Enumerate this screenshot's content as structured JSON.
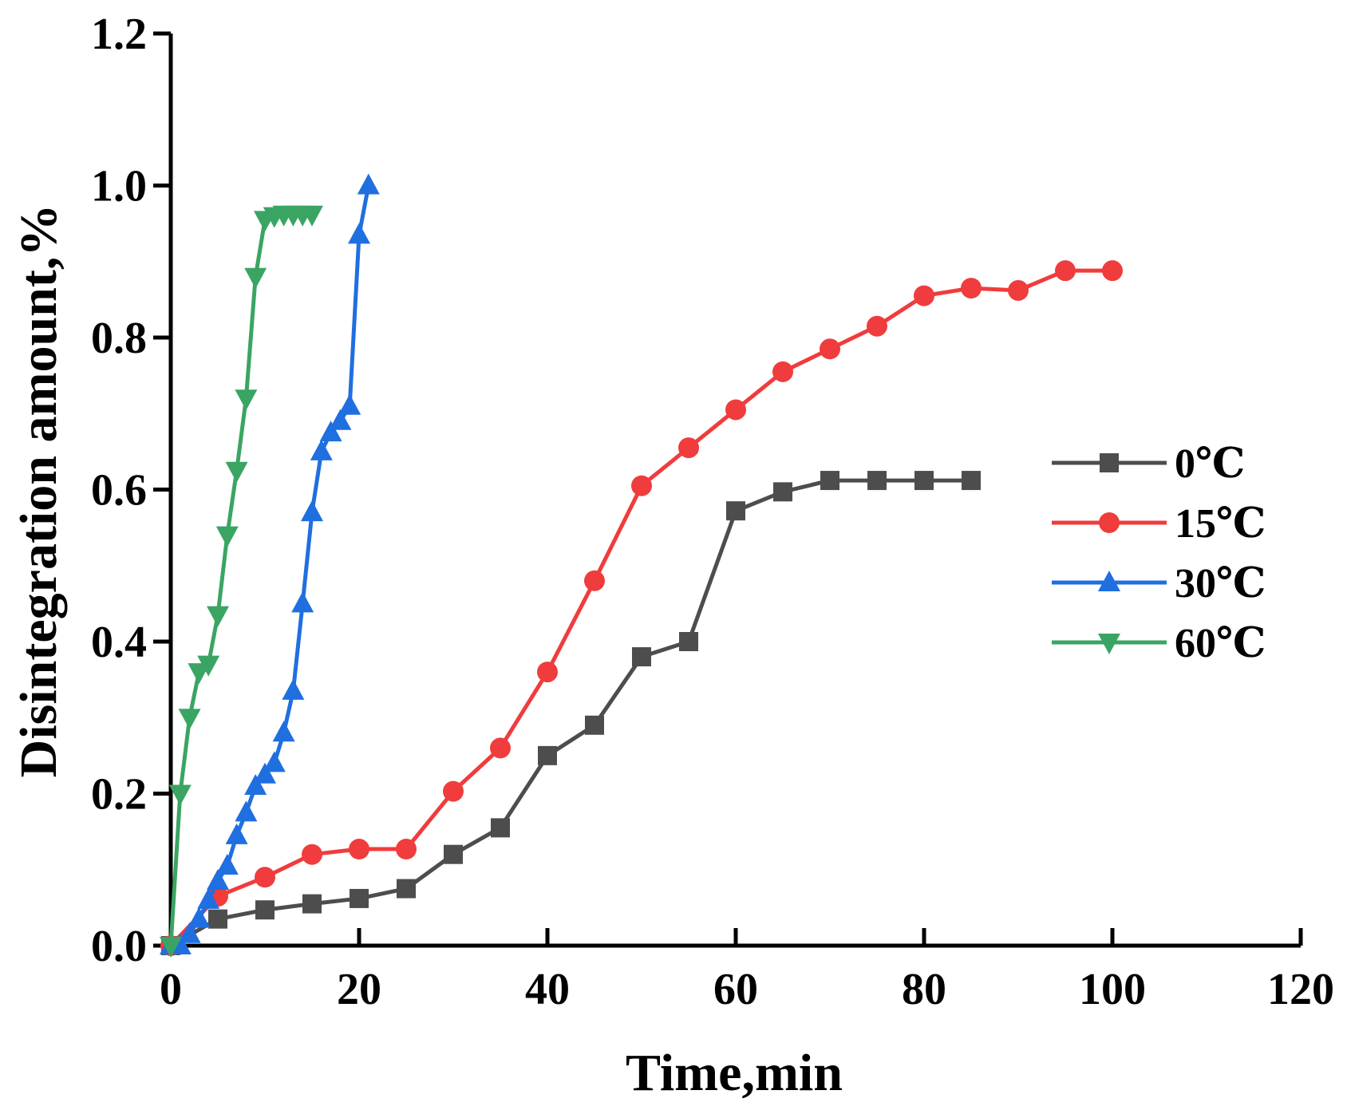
{
  "chart_data": {
    "type": "line",
    "title": "",
    "xlabel": "Time,min",
    "ylabel": "Disintegration amount,%",
    "xlim": [
      0,
      120
    ],
    "ylim": [
      0,
      1.2
    ],
    "xticks": [
      0,
      20,
      40,
      60,
      80,
      100,
      120
    ],
    "yticks": [
      0.0,
      0.2,
      0.4,
      0.6,
      0.8,
      1.0,
      1.2
    ],
    "xtick_labels": [
      "0",
      "20",
      "40",
      "60",
      "80",
      "100",
      "120"
    ],
    "ytick_labels": [
      "0.0",
      "0.2",
      "0.4",
      "0.6",
      "0.8",
      "1.0",
      "1.2"
    ],
    "grid": false,
    "legend_position": "right",
    "series": [
      {
        "name": "0℃",
        "color": "#4d4d4d",
        "marker": "square",
        "x": [
          0,
          5,
          10,
          15,
          20,
          25,
          30,
          35,
          40,
          45,
          50,
          55,
          60,
          65,
          70,
          75,
          80,
          85
        ],
        "y": [
          0,
          0.035,
          0.047,
          0.055,
          0.062,
          0.075,
          0.12,
          0.155,
          0.25,
          0.29,
          0.38,
          0.4,
          0.572,
          0.597,
          0.612,
          0.612,
          0.612,
          0.612
        ]
      },
      {
        "name": "15℃",
        "color": "#f03c3c",
        "marker": "circle",
        "x": [
          0,
          5,
          10,
          15,
          20,
          25,
          30,
          35,
          40,
          45,
          50,
          55,
          60,
          65,
          70,
          75,
          80,
          85,
          90,
          95,
          100
        ],
        "y": [
          0,
          0.065,
          0.09,
          0.12,
          0.127,
          0.127,
          0.203,
          0.26,
          0.36,
          0.48,
          0.605,
          0.655,
          0.705,
          0.755,
          0.785,
          0.815,
          0.855,
          0.865,
          0.862,
          0.888,
          0.888
        ]
      },
      {
        "name": "30℃",
        "color": "#1f6fe0",
        "marker": "triangle-up",
        "x": [
          0,
          1,
          2,
          3,
          4,
          5,
          6,
          7,
          8,
          9,
          10,
          11,
          12,
          13,
          14,
          15,
          16,
          17,
          18,
          19,
          20,
          21
        ],
        "y": [
          0,
          0.0,
          0.015,
          0.035,
          0.06,
          0.085,
          0.105,
          0.145,
          0.175,
          0.21,
          0.225,
          0.24,
          0.28,
          0.335,
          0.45,
          0.57,
          0.65,
          0.675,
          0.69,
          0.71,
          0.935,
          1.0
        ]
      },
      {
        "name": "60℃",
        "color": "#3aa563",
        "marker": "triangle-down",
        "x": [
          0,
          1,
          2,
          3,
          4,
          5,
          6,
          7,
          8,
          9,
          10,
          11,
          12,
          13,
          14,
          15
        ],
        "y": [
          0,
          0.2,
          0.3,
          0.36,
          0.37,
          0.435,
          0.54,
          0.625,
          0.72,
          0.88,
          0.955,
          0.96,
          0.962,
          0.962,
          0.962,
          0.962
        ]
      }
    ]
  }
}
